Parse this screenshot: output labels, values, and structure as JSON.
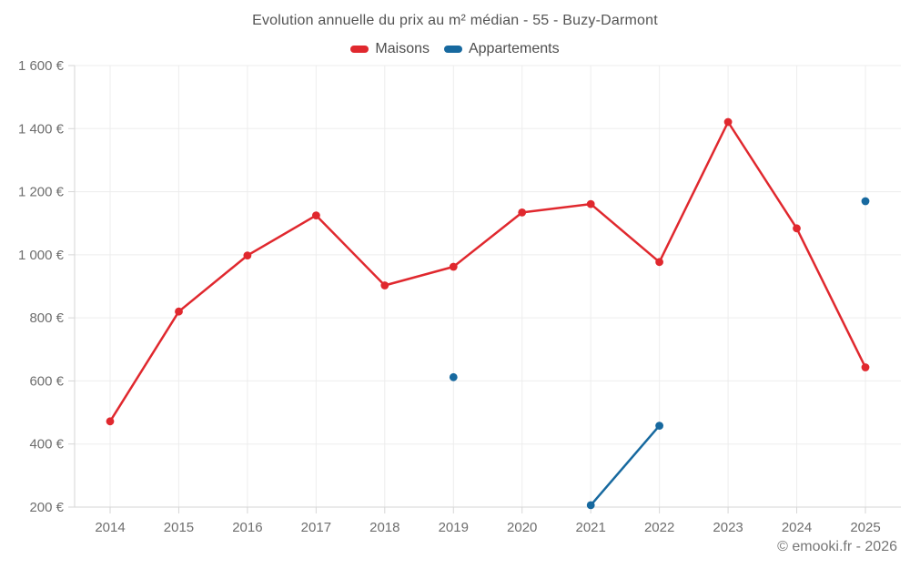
{
  "page": {
    "title": "Evolution annuelle du prix au m² médian - 55 - Buzy-Darmont",
    "footer_credit": "© emooki.fr - 2026"
  },
  "legend": [
    {
      "label": "Maisons",
      "color": "#e0282e"
    },
    {
      "label": "Appartements",
      "color": "#17699f"
    }
  ],
  "axis": {
    "tick_color": "#6e6e6e",
    "grid_color": "#ededed",
    "axis_line_color": "#d6d6d6"
  },
  "chart_data": {
    "type": "line",
    "title": "Evolution annuelle du prix au m² médian - 55 - Buzy-Darmont",
    "x": [
      "2014",
      "2015",
      "2016",
      "2017",
      "2018",
      "2019",
      "2020",
      "2021",
      "2022",
      "2023",
      "2024",
      "2025"
    ],
    "series": [
      {
        "name": "Maisons",
        "color": "#e0282e",
        "values": [
          472,
          820,
          998,
          1125,
          903,
          962,
          1134,
          1161,
          977,
          1421,
          1084,
          643
        ]
      },
      {
        "name": "Appartements",
        "color": "#17699f",
        "values": [
          null,
          null,
          null,
          null,
          null,
          612,
          null,
          206,
          458,
          null,
          null,
          1170
        ]
      }
    ],
    "ylim": [
      200,
      1600
    ],
    "ytick_step": 200,
    "ytick_suffix": " €",
    "xlabel": "",
    "ylabel": "",
    "grid": true,
    "legend_position": "top"
  }
}
